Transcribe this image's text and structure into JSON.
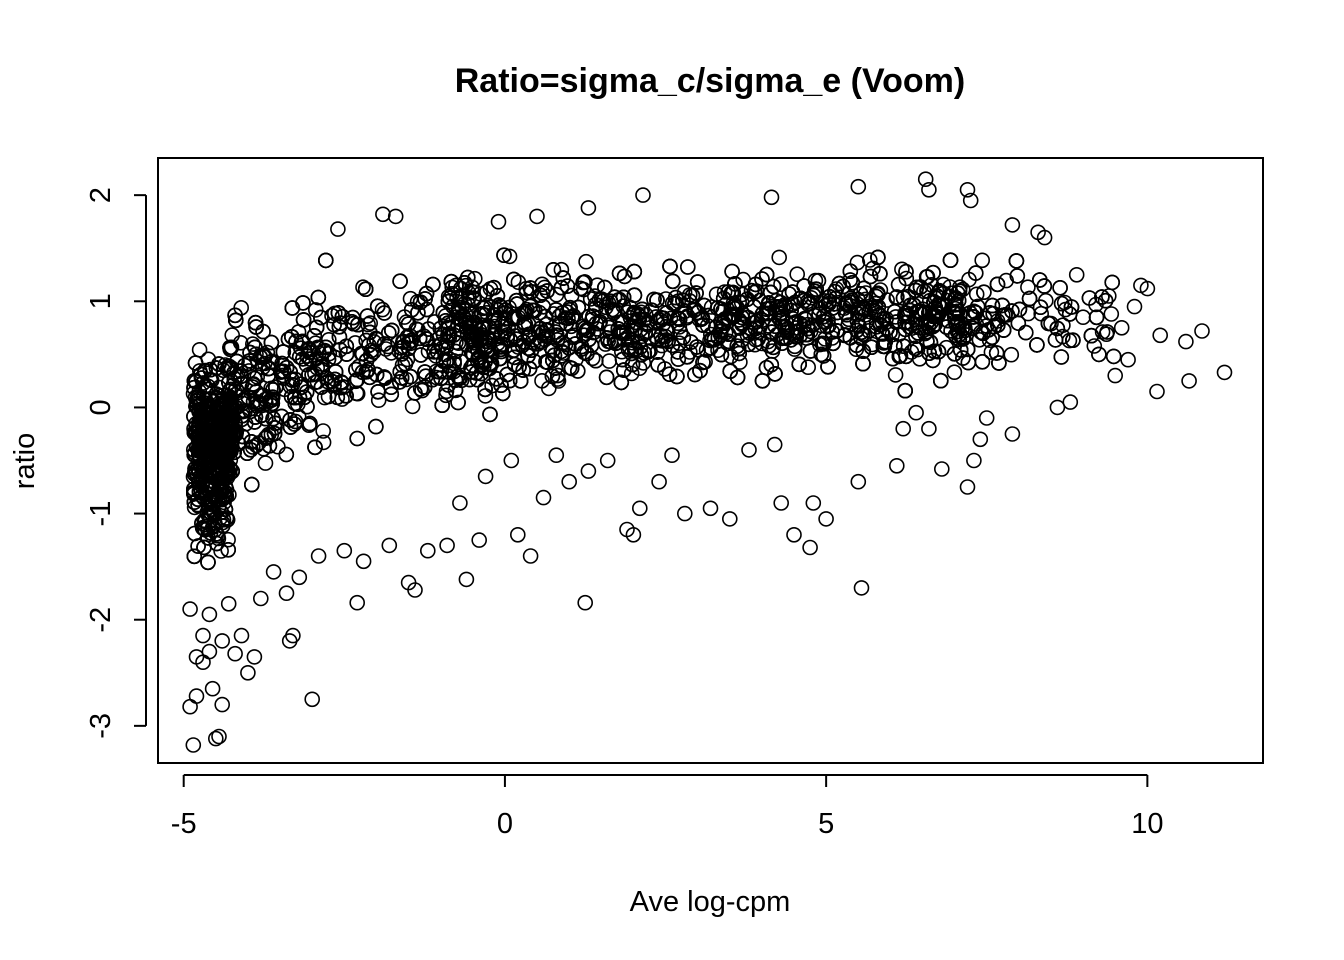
{
  "chart_data": {
    "type": "scatter",
    "title": "Ratio=sigma_c/sigma_e (Voom)",
    "xlabel": "Ave log-cpm",
    "ylabel": "ratio",
    "xlim": [
      -5.4,
      11.8
    ],
    "ylim": [
      -3.35,
      2.35
    ],
    "x_ticks": [
      -5,
      0,
      5,
      10
    ],
    "y_ticks": [
      -3,
      -2,
      -1,
      0,
      1,
      2
    ],
    "x_tick_labels": [
      "-5",
      "0",
      "5",
      "10"
    ],
    "y_tick_labels": [
      "-3",
      "-2",
      "-1",
      "0",
      "1",
      "2"
    ],
    "marker": "open-circle",
    "color": "#000000",
    "points": [
      [
        -4.85,
        -3.18
      ],
      [
        -4.5,
        -3.12
      ],
      [
        -4.45,
        -3.1
      ],
      [
        -4.9,
        -2.82
      ],
      [
        -4.8,
        -2.72
      ],
      [
        -4.55,
        -2.65
      ],
      [
        -4.4,
        -2.8
      ],
      [
        -3.0,
        -2.75
      ],
      [
        -4.8,
        -2.35
      ],
      [
        -4.7,
        -2.4
      ],
      [
        -4.6,
        -2.3
      ],
      [
        -4.2,
        -2.32
      ],
      [
        -4.0,
        -2.5
      ],
      [
        -3.9,
        -2.35
      ],
      [
        -3.3,
        -2.15
      ],
      [
        -3.35,
        -2.2
      ],
      [
        -4.7,
        -2.15
      ],
      [
        -4.4,
        -2.2
      ],
      [
        -4.1,
        -2.15
      ],
      [
        -4.9,
        -1.9
      ],
      [
        -4.6,
        -1.95
      ],
      [
        -4.3,
        -1.85
      ],
      [
        -3.8,
        -1.8
      ],
      [
        -3.4,
        -1.75
      ],
      [
        -2.3,
        -1.84
      ],
      [
        -1.5,
        -1.65
      ],
      [
        -1.4,
        -1.72
      ],
      [
        -0.6,
        -1.62
      ],
      [
        1.25,
        -1.84
      ],
      [
        5.55,
        -1.7
      ],
      [
        -3.6,
        -1.55
      ],
      [
        -3.2,
        -1.6
      ],
      [
        -2.9,
        -1.4
      ],
      [
        -2.5,
        -1.35
      ],
      [
        -2.2,
        -1.45
      ],
      [
        -1.8,
        -1.3
      ],
      [
        -1.2,
        -1.35
      ],
      [
        -0.9,
        -1.3
      ],
      [
        -0.4,
        -1.25
      ],
      [
        0.2,
        -1.2
      ],
      [
        0.4,
        -1.4
      ],
      [
        0.6,
        -0.85
      ],
      [
        1.0,
        -0.7
      ],
      [
        1.3,
        -0.6
      ],
      [
        1.9,
        -1.15
      ],
      [
        2.0,
        -1.2
      ],
      [
        2.1,
        -0.95
      ],
      [
        2.4,
        -0.7
      ],
      [
        2.8,
        -1.0
      ],
      [
        3.2,
        -0.95
      ],
      [
        3.5,
        -1.05
      ],
      [
        4.3,
        -0.9
      ],
      [
        4.5,
        -1.2
      ],
      [
        4.8,
        -0.9
      ],
      [
        5.0,
        -1.05
      ],
      [
        4.75,
        -1.32
      ],
      [
        5.5,
        -0.7
      ],
      [
        6.1,
        -0.55
      ],
      [
        6.8,
        -0.58
      ],
      [
        7.2,
        -0.75
      ],
      [
        7.3,
        -0.5
      ],
      [
        7.9,
        -0.25
      ],
      [
        -0.7,
        -0.9
      ],
      [
        -0.3,
        -0.65
      ],
      [
        0.1,
        -0.5
      ],
      [
        0.8,
        -0.45
      ],
      [
        1.6,
        -0.5
      ],
      [
        2.6,
        -0.45
      ],
      [
        3.8,
        -0.4
      ],
      [
        4.2,
        -0.35
      ],
      [
        6.2,
        -0.2
      ],
      [
        6.6,
        -0.2
      ],
      [
        7.4,
        -0.3
      ],
      [
        6.4,
        -0.05
      ],
      [
        7.5,
        -0.1
      ],
      [
        8.6,
        0.0
      ],
      [
        8.8,
        0.05
      ],
      [
        9.5,
        0.3
      ],
      [
        9.7,
        0.45
      ],
      [
        10.15,
        0.15
      ],
      [
        10.2,
        0.68
      ],
      [
        10.6,
        0.62
      ],
      [
        10.65,
        0.25
      ],
      [
        10.85,
        0.72
      ],
      [
        11.2,
        0.33
      ],
      [
        9.0,
        0.85
      ],
      [
        9.2,
        0.97
      ],
      [
        9.6,
        0.75
      ],
      [
        9.4,
        1.05
      ],
      [
        9.9,
        1.15
      ],
      [
        9.8,
        0.95
      ],
      [
        10.0,
        1.12
      ],
      [
        8.9,
        1.25
      ],
      [
        8.4,
        1.6
      ],
      [
        8.3,
        1.65
      ],
      [
        7.9,
        1.72
      ],
      [
        6.55,
        2.15
      ],
      [
        6.6,
        2.05
      ],
      [
        7.2,
        2.05
      ],
      [
        7.25,
        1.95
      ],
      [
        5.5,
        2.08
      ],
      [
        2.15,
        2.0
      ],
      [
        4.15,
        1.98
      ],
      [
        1.3,
        1.88
      ],
      [
        -1.9,
        1.82
      ],
      [
        -1.7,
        1.8
      ],
      [
        -2.6,
        1.68
      ],
      [
        -0.1,
        1.75
      ],
      [
        0.5,
        1.8
      ]
    ]
  }
}
